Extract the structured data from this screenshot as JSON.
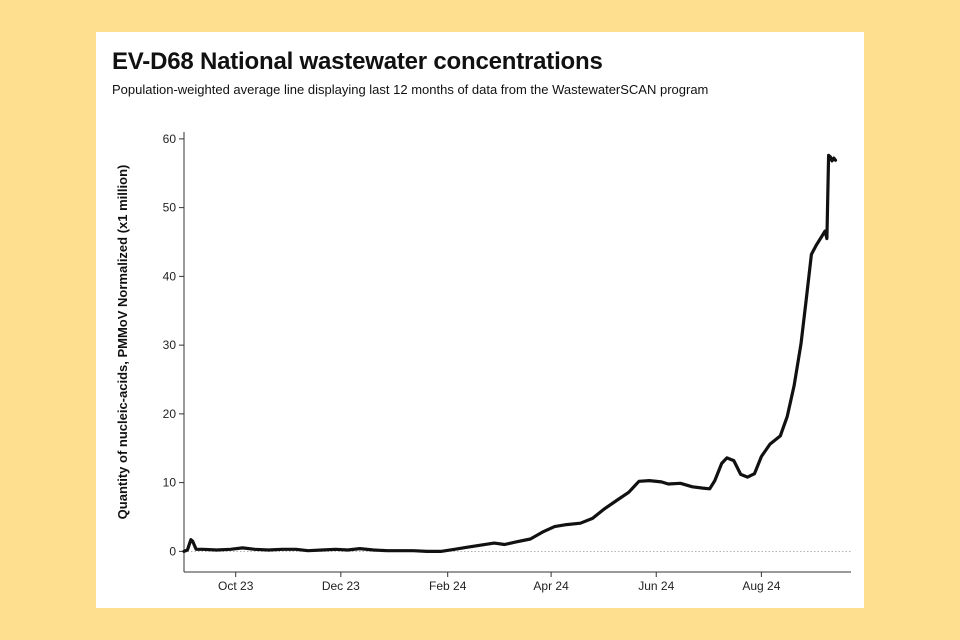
{
  "chart_data": {
    "type": "line",
    "title": "EV-D68 National wastewater concentrations",
    "subtitle": "Population-weighted average line displaying last 12 months of data from the WastewaterSCAN program",
    "xlabel": "",
    "ylabel": "Quantity of nucleic-acids, PMMoV Normalized (x1 million)",
    "ylim": [
      -3,
      61
    ],
    "yticks": [
      0,
      10,
      20,
      30,
      40,
      50,
      60
    ],
    "xticks": [
      "Oct 23",
      "Dec 23",
      "Feb 24",
      "Apr 24",
      "Jun 24",
      "Aug 24"
    ],
    "xtick_dates": [
      "2023-10-01",
      "2023-12-01",
      "2024-02-01",
      "2024-04-01",
      "2024-06-01",
      "2024-08-01"
    ],
    "xlim": [
      "2023-09-01",
      "2024-09-22"
    ],
    "zero_reference_line": true,
    "grid": false,
    "legend": "none",
    "line_color": "#111111",
    "series": [
      {
        "x": [
          "2023-09-01",
          "2023-09-03",
          "2023-09-05",
          "2023-09-06",
          "2023-09-08",
          "2023-09-12",
          "2023-09-20",
          "2023-09-28",
          "2023-10-05",
          "2023-10-12",
          "2023-10-20",
          "2023-10-28",
          "2023-11-05",
          "2023-11-12",
          "2023-11-20",
          "2023-11-28",
          "2023-12-05",
          "2023-12-12",
          "2023-12-20",
          "2023-12-28",
          "2024-01-05",
          "2024-01-12",
          "2024-01-20",
          "2024-01-28",
          "2024-02-05",
          "2024-02-12",
          "2024-02-20",
          "2024-02-28",
          "2024-03-05",
          "2024-03-12",
          "2024-03-20",
          "2024-03-27",
          "2024-04-03",
          "2024-04-10",
          "2024-04-18",
          "2024-04-25",
          "2024-05-02",
          "2024-05-09",
          "2024-05-16",
          "2024-05-22",
          "2024-05-28",
          "2024-06-04",
          "2024-06-08",
          "2024-06-15",
          "2024-06-22",
          "2024-06-28",
          "2024-07-02",
          "2024-07-05",
          "2024-07-09",
          "2024-07-12",
          "2024-07-16",
          "2024-07-20",
          "2024-07-24",
          "2024-07-28",
          "2024-08-01",
          "2024-08-06",
          "2024-08-12",
          "2024-08-16",
          "2024-08-20",
          "2024-08-24",
          "2024-08-27",
          "2024-08-30",
          "2024-09-02",
          "2024-09-05",
          "2024-09-07",
          "2024-09-08",
          "2024-09-09",
          "2024-09-10",
          "2024-09-11",
          "2024-09-12",
          "2024-09-13"
        ],
        "y": [
          0,
          0.2,
          1.7,
          1.5,
          0.3,
          0.3,
          0.2,
          0.3,
          0.5,
          0.3,
          0.2,
          0.3,
          0.3,
          0.1,
          0.2,
          0.3,
          0.2,
          0.4,
          0.2,
          0.1,
          0.1,
          0.1,
          0,
          0,
          0.3,
          0.6,
          0.9,
          1.2,
          1,
          1.4,
          1.8,
          2.8,
          3.6,
          3.9,
          4.1,
          4.8,
          6.2,
          7.4,
          8.6,
          10.2,
          10.3,
          10.1,
          9.8,
          9.9,
          9.4,
          9.2,
          9.1,
          10.3,
          12.8,
          13.6,
          13.2,
          11.2,
          10.8,
          11.3,
          13.8,
          15.6,
          16.8,
          19.6,
          24.1,
          30.2,
          36.6,
          43.2,
          44.6,
          45.8,
          46.6,
          45.5,
          57.6,
          57.4,
          56.8,
          57.2,
          56.9
        ]
      }
    ]
  }
}
